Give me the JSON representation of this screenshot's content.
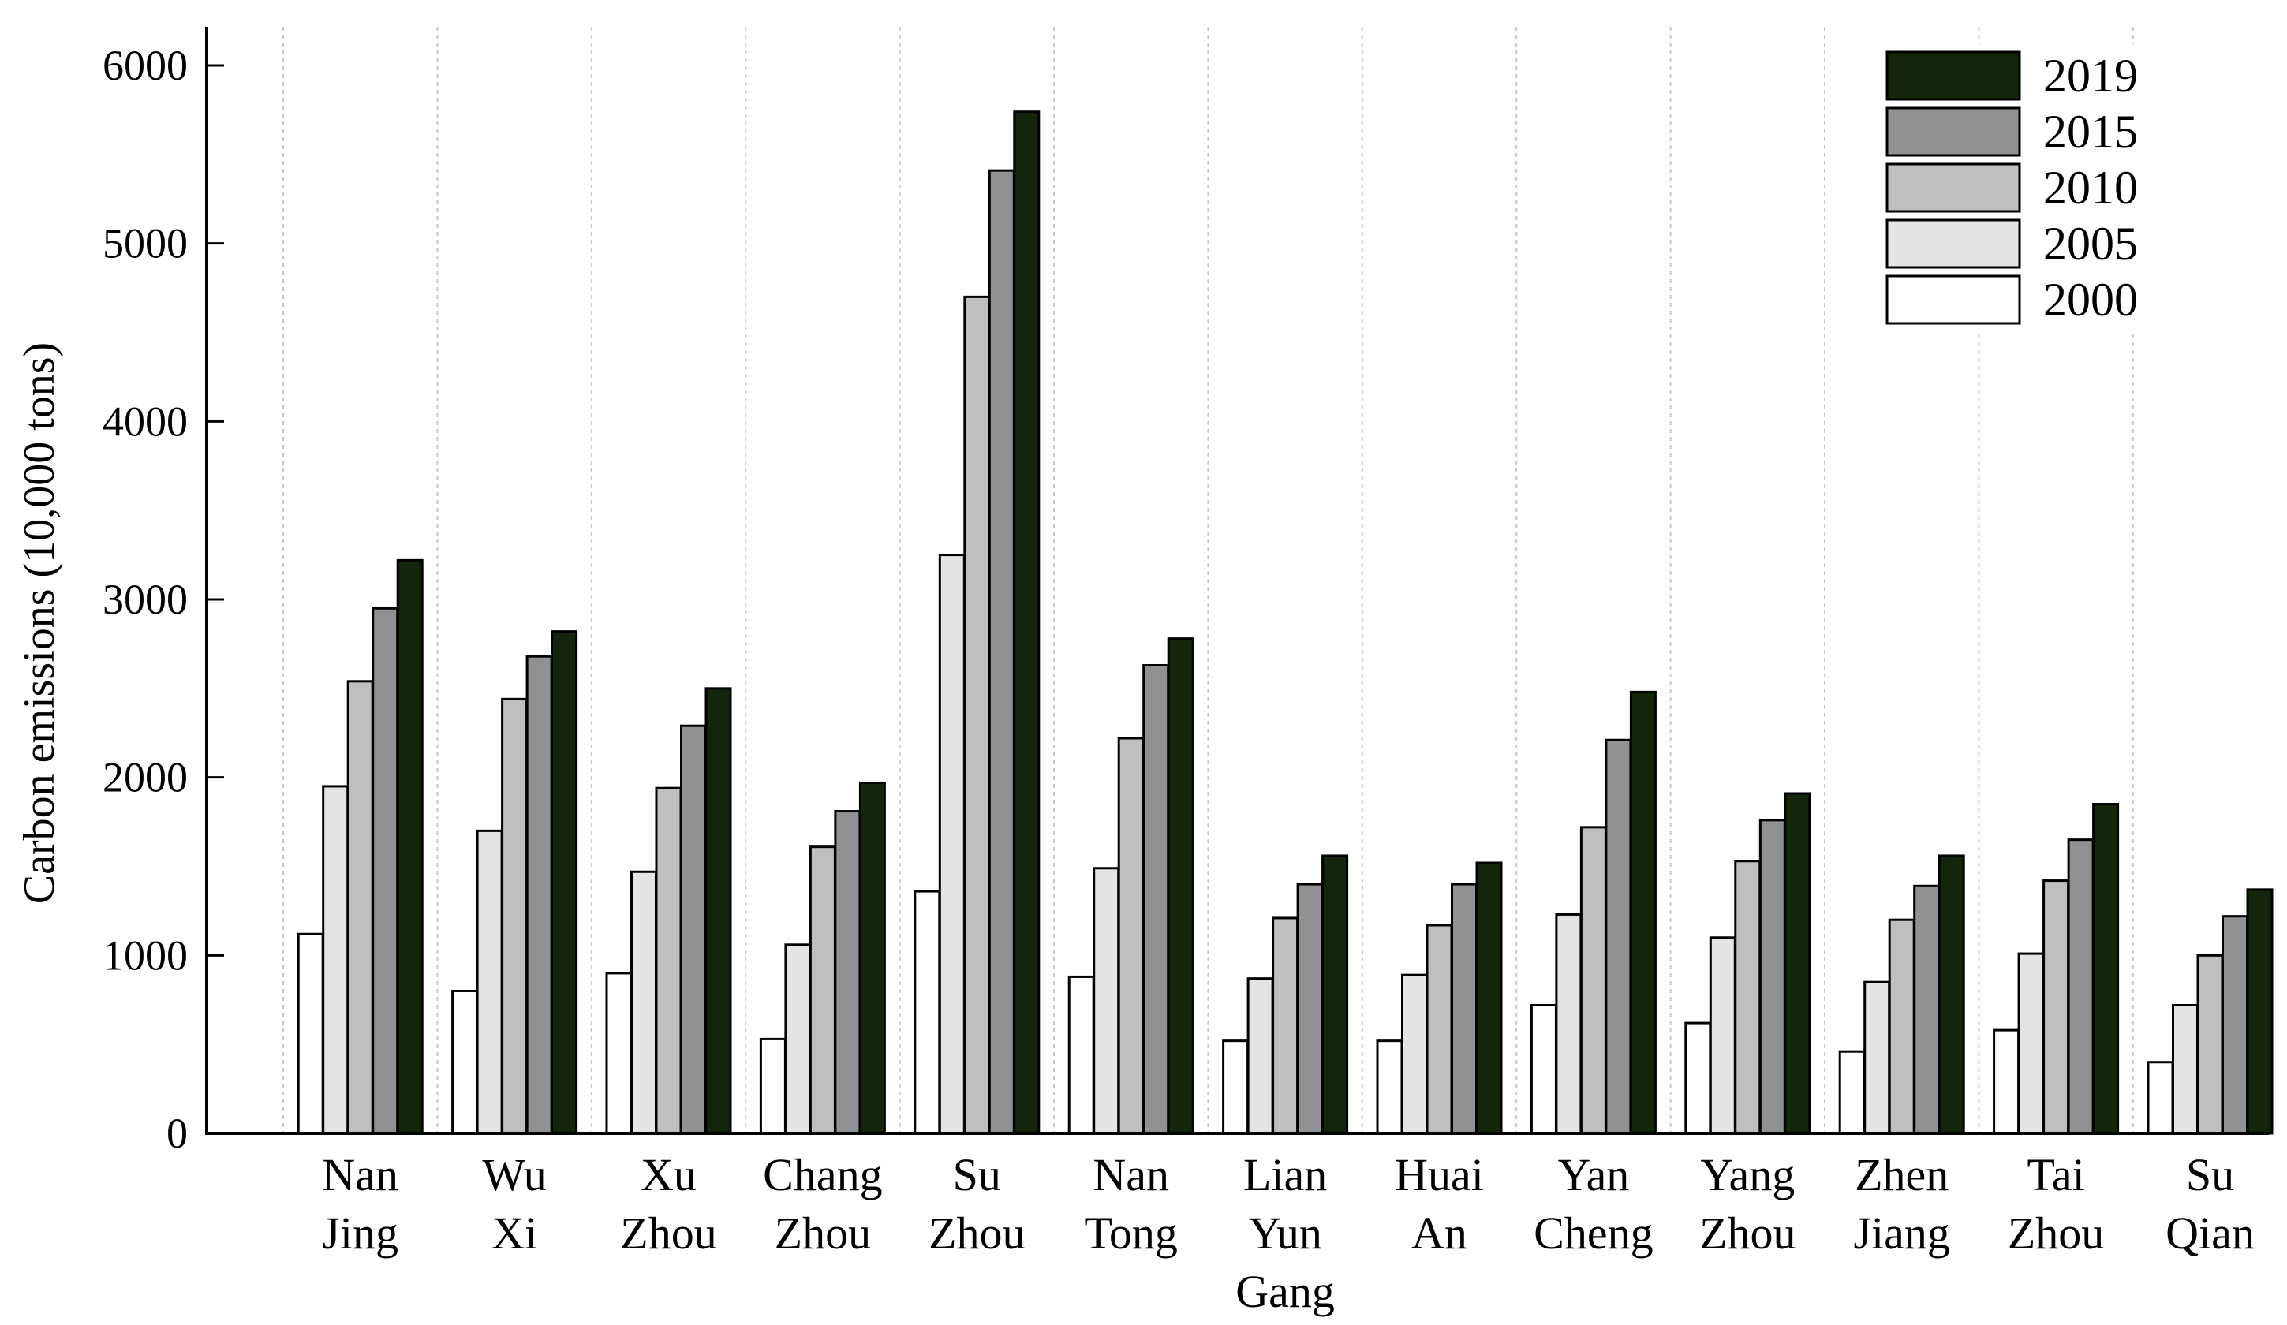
{
  "chart_data": {
    "type": "bar",
    "ylabel": "Carbon emissions (10,000 tons)",
    "xlabel": "",
    "ylim": [
      0,
      6200
    ],
    "yticks": [
      0,
      1000,
      2000,
      3000,
      4000,
      5000,
      6000
    ],
    "grid": "vertical dotted separators between cities",
    "legend_position": "top-right",
    "categories": [
      [
        "Nan",
        "Jing"
      ],
      [
        "Wu",
        "Xi"
      ],
      [
        "Xu",
        "Zhou"
      ],
      [
        "Chang",
        "Zhou"
      ],
      [
        "Su",
        "Zhou"
      ],
      [
        "Nan",
        "Tong"
      ],
      [
        "Lian",
        "Yun",
        "Gang"
      ],
      [
        "Huai",
        "An"
      ],
      [
        "Yan",
        "Cheng"
      ],
      [
        "Yang",
        "Zhou"
      ],
      [
        "Zhen",
        "Jiang"
      ],
      [
        "Tai",
        "Zhou"
      ],
      [
        "Su",
        "Qian"
      ]
    ],
    "series": [
      {
        "name": "2000",
        "color": "#ffffff",
        "values": [
          1120,
          800,
          900,
          530,
          1360,
          880,
          520,
          520,
          720,
          620,
          460,
          580,
          400
        ]
      },
      {
        "name": "2005",
        "color": "#e3e4e6",
        "values": [
          1950,
          1700,
          1470,
          1060,
          3250,
          1490,
          870,
          890,
          1230,
          1100,
          850,
          1010,
          720
        ]
      },
      {
        "name": "2010",
        "color": "#bcc0c2",
        "values": [
          2540,
          2440,
          1940,
          1610,
          4700,
          2220,
          1210,
          1170,
          1720,
          1530,
          1200,
          1420,
          1000
        ]
      },
      {
        "name": "2015",
        "color": "#8e9294",
        "values": [
          2950,
          2680,
          2290,
          1810,
          5410,
          2630,
          1400,
          1400,
          2210,
          1760,
          1390,
          1650,
          1220
        ]
      },
      {
        "name": "2019",
        "color": "#13260b",
        "values": [
          3220,
          2820,
          2500,
          1970,
          5740,
          2780,
          1560,
          1520,
          2480,
          1910,
          1560,
          1850,
          1370
        ]
      }
    ]
  }
}
